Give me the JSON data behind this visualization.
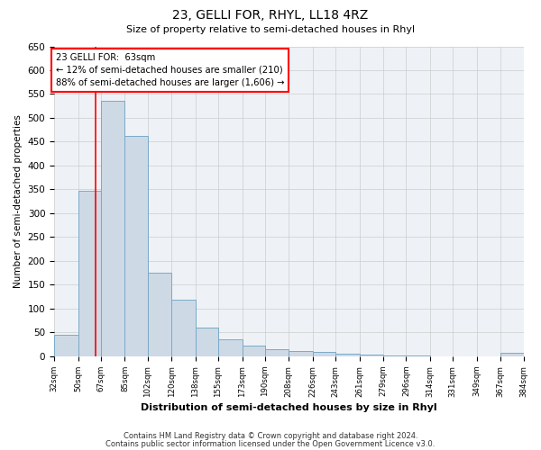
{
  "title": "23, GELLI FOR, RHYL, LL18 4RZ",
  "subtitle": "Size of property relative to semi-detached houses in Rhyl",
  "xlabel": "Distribution of semi-detached houses by size in Rhyl",
  "ylabel": "Number of semi-detached properties",
  "bar_edges": [
    32,
    50,
    67,
    85,
    102,
    120,
    138,
    155,
    173,
    190,
    208,
    226,
    243,
    261,
    279,
    296,
    314,
    331,
    349,
    367,
    384
  ],
  "bar_heights": [
    46,
    348,
    535,
    463,
    176,
    118,
    60,
    35,
    22,
    15,
    12,
    10,
    6,
    4,
    2,
    1,
    0,
    0,
    0,
    8
  ],
  "bar_color": "#cdd9e5",
  "bar_edge_color": "#7aaac8",
  "property_line_x": 63,
  "property_line_color": "red",
  "annotation_title": "23 GELLI FOR:  63sqm",
  "annotation_line1": "← 12% of semi-detached houses are smaller (210)",
  "annotation_line2": "88% of semi-detached houses are larger (1,606) →",
  "ylim": [
    0,
    650
  ],
  "yticks": [
    0,
    50,
    100,
    150,
    200,
    250,
    300,
    350,
    400,
    450,
    500,
    550,
    600,
    650
  ],
  "x_tick_labels": [
    "32sqm",
    "50sqm",
    "67sqm",
    "85sqm",
    "102sqm",
    "120sqm",
    "138sqm",
    "155sqm",
    "173sqm",
    "190sqm",
    "208sqm",
    "226sqm",
    "243sqm",
    "261sqm",
    "279sqm",
    "296sqm",
    "314sqm",
    "331sqm",
    "349sqm",
    "367sqm",
    "384sqm"
  ],
  "footer_line1": "Contains HM Land Registry data © Crown copyright and database right 2024.",
  "footer_line2": "Contains public sector information licensed under the Open Government Licence v3.0.",
  "background_color": "#ffffff",
  "grid_color": "#cccccc",
  "axes_bg_color": "#eef2f7"
}
